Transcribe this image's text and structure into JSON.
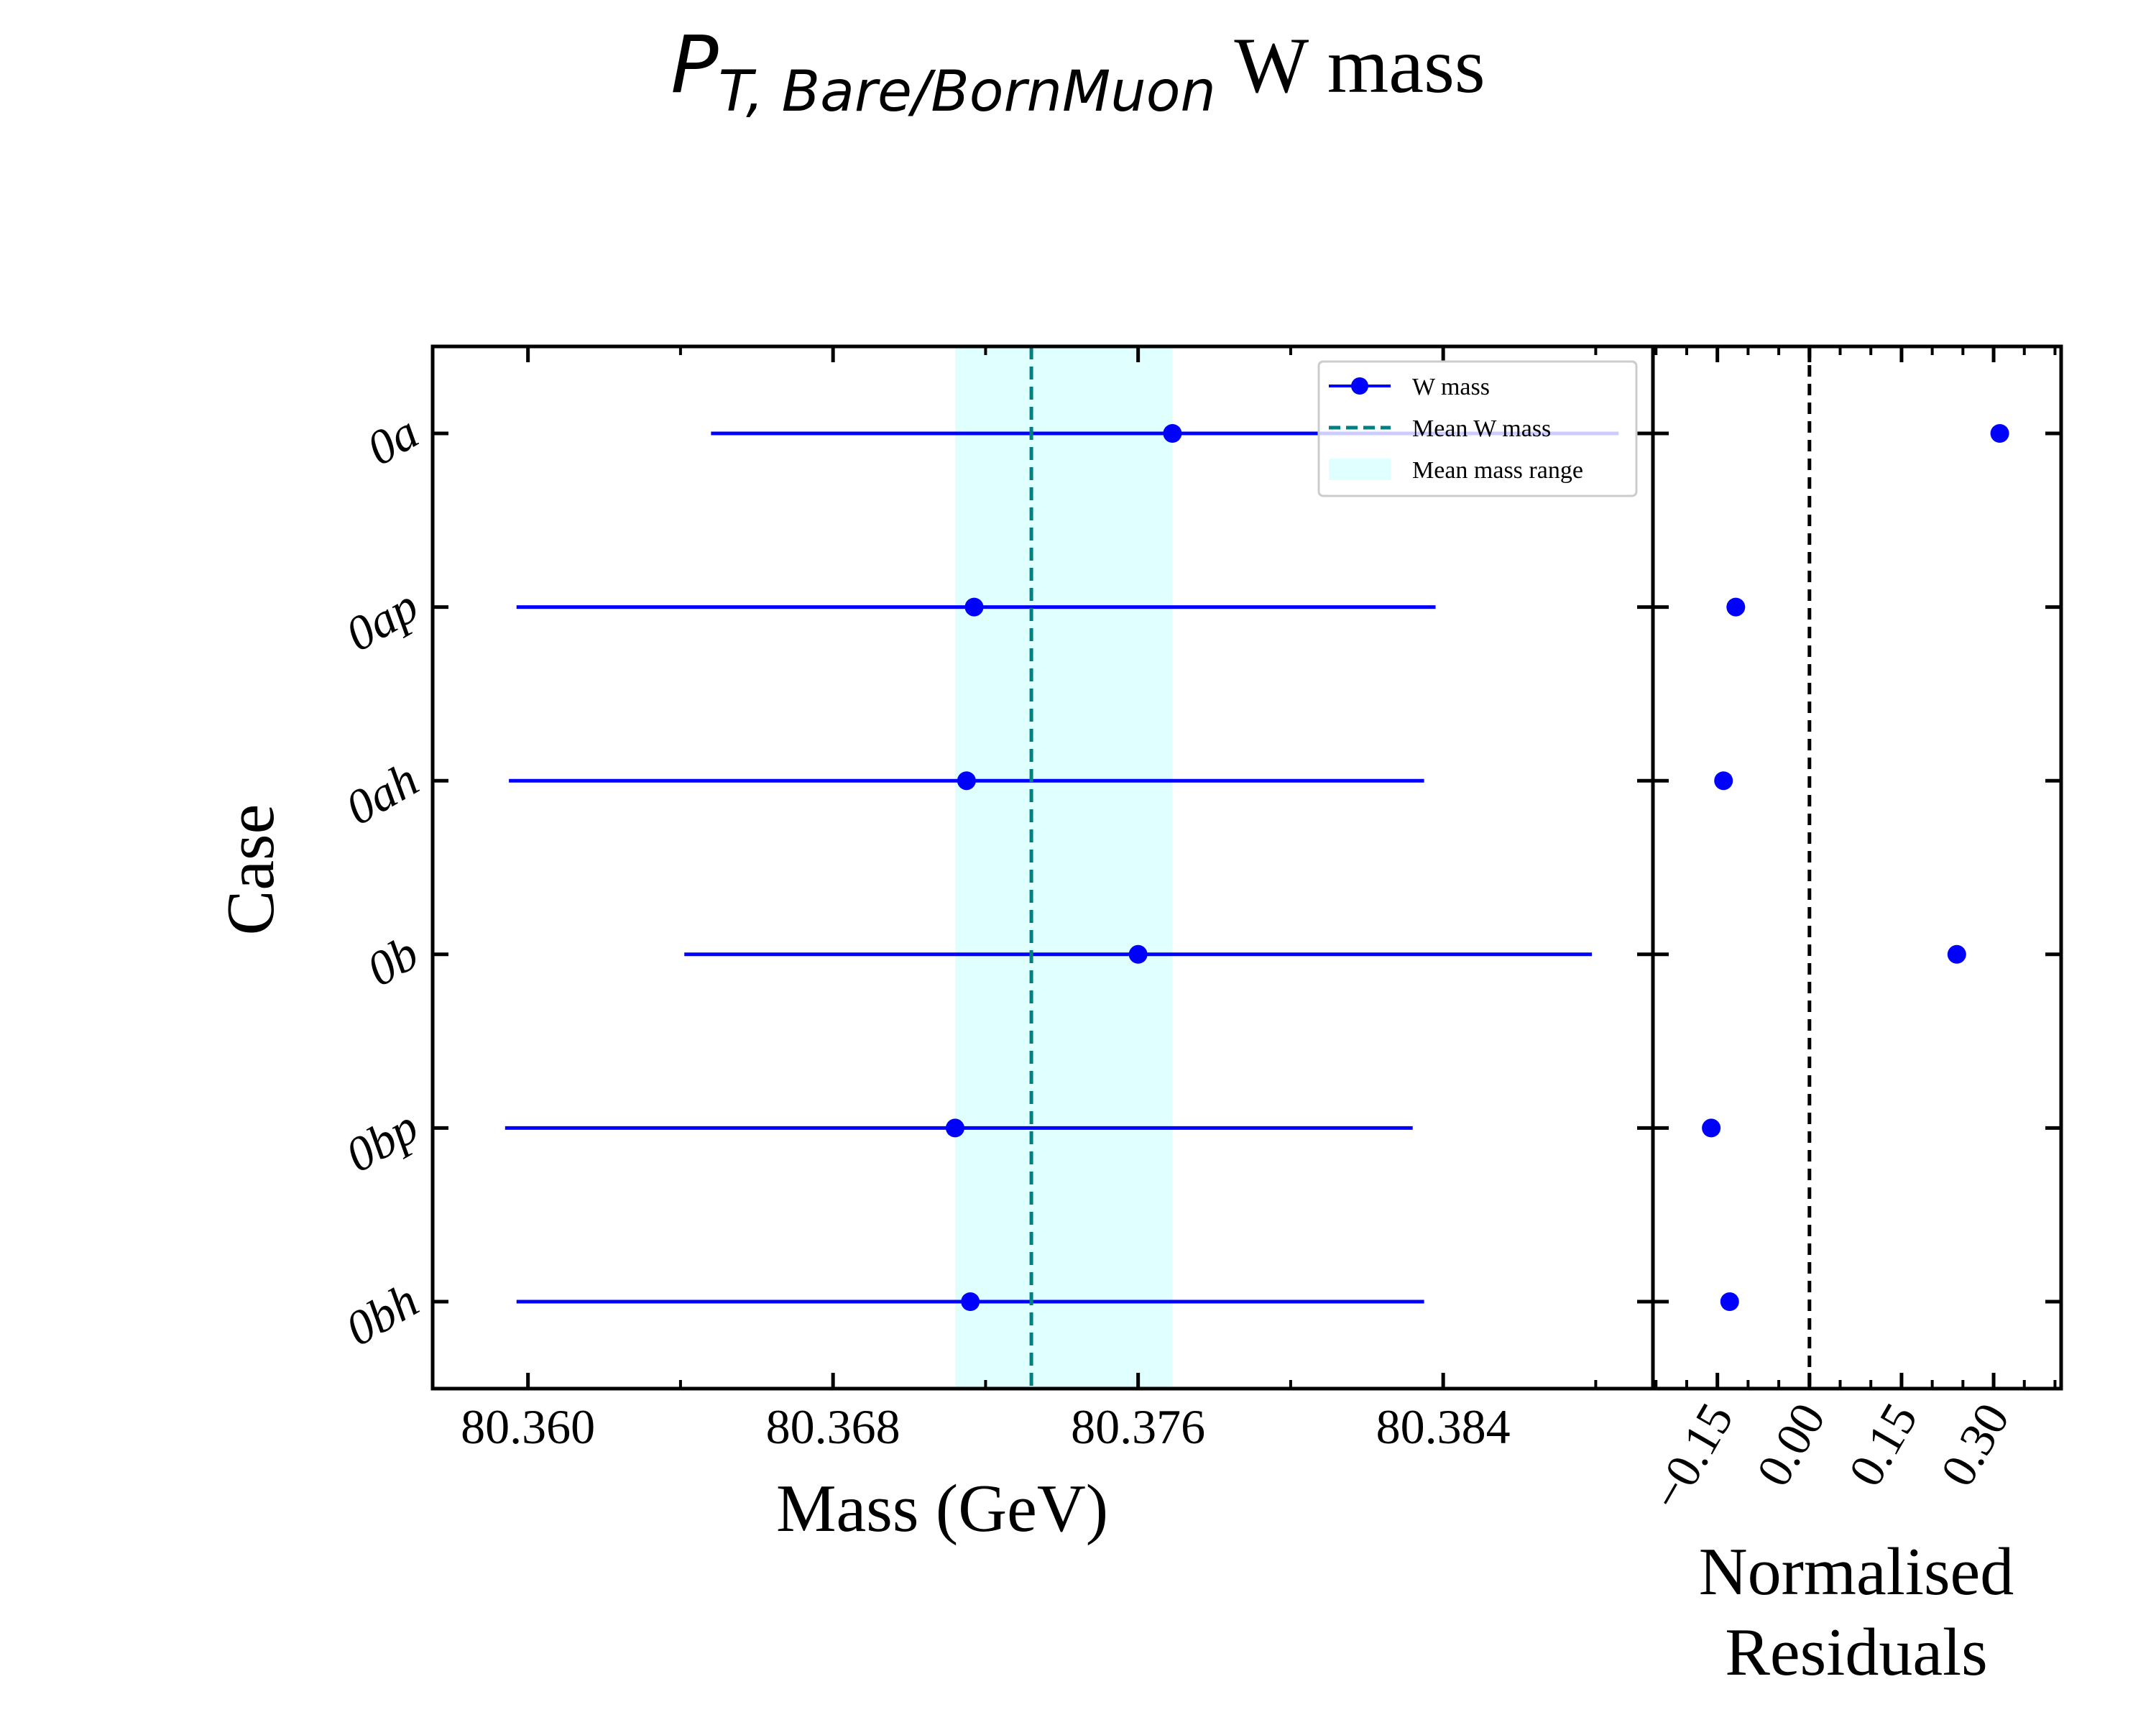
{
  "title": {
    "symbol": "P",
    "subscript": "T, Bare/BornMuon",
    "rest": " W mass"
  },
  "chart_data": [
    {
      "type": "scatter",
      "panel": "main",
      "title": "",
      "xlabel": "Mass (GeV)",
      "ylabel": "Case",
      "categories": [
        "0a",
        "0ap",
        "0ah",
        "0b",
        "0bp",
        "0bh"
      ],
      "xlim": [
        80.3575,
        80.3895
      ],
      "xticks": [
        "80.360",
        "80.368",
        "80.376",
        "80.384"
      ],
      "series": [
        {
          "name": "W mass",
          "values": [
            80.3769,
            80.3717,
            80.3715,
            80.376,
            80.3712,
            80.3716
          ],
          "xerr_low": [
            80.3648,
            80.3597,
            80.3595,
            80.3641,
            80.3594,
            80.3597
          ],
          "xerr_high": [
            80.3886,
            80.3838,
            80.3835,
            80.3879,
            80.3832,
            80.3835
          ],
          "color": "#0000ff"
        }
      ],
      "mean": {
        "name": "Mean W mass",
        "value": 80.3732,
        "color": "#008080"
      },
      "mean_range": {
        "name": "Mean mass range",
        "low": 80.3712,
        "high": 80.3769,
        "color": "#e0ffff"
      },
      "legend": "top-right",
      "grid": false
    },
    {
      "type": "scatter",
      "panel": "residuals",
      "title": "",
      "xlabel_lines": [
        "Normalised",
        "Residuals"
      ],
      "xlim": [
        -0.255,
        0.41
      ],
      "xticks": [
        -0.15,
        0.0,
        0.15,
        0.3
      ],
      "xtick_labels": [
        "−0.15",
        "0.00",
        "0.15",
        "0.30"
      ],
      "categories": [
        "0a",
        "0ap",
        "0ah",
        "0b",
        "0bp",
        "0bh"
      ],
      "values": [
        0.31,
        -0.12,
        -0.14,
        0.24,
        -0.16,
        -0.13
      ],
      "zero_line": 0.0,
      "color": "#0000ff",
      "grid": false
    }
  ]
}
